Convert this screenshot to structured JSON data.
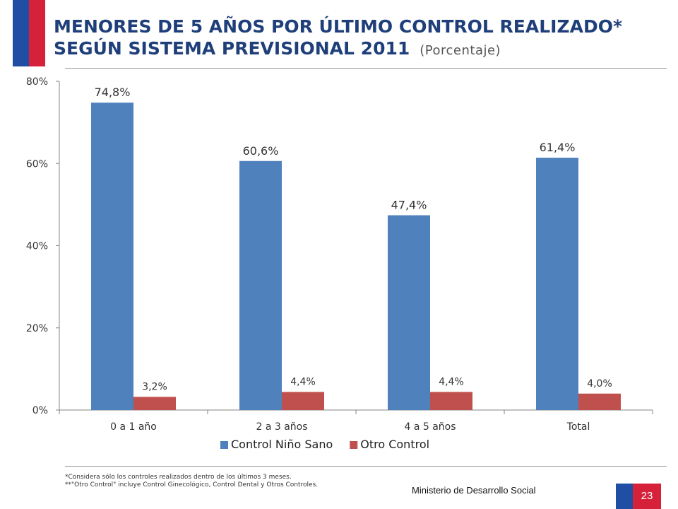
{
  "header": {
    "title_line1": "MENORES DE 5 AÑOS POR ÚLTIMO CONTROL REALIZADO*",
    "title_line2": "SEGÚN SISTEMA PREVISIONAL 2011",
    "subtitle": "(Porcentaje)"
  },
  "colors": {
    "brand_blue": "#1f4ea3",
    "brand_red": "#d6213a",
    "title_text": "#1f3f7a"
  },
  "chart_data": {
    "type": "bar",
    "categories": [
      "0 a 1 año",
      "2 a 3 años",
      "4 a 5 años",
      "Total"
    ],
    "series": [
      {
        "name": "Control Niño Sano",
        "values": [
          74.8,
          60.6,
          47.4,
          61.4
        ],
        "labels": [
          "74,8%",
          "60,6%",
          "47,4%",
          "61,4%"
        ],
        "color": "#4f81bd"
      },
      {
        "name": "Otro Control",
        "values": [
          3.2,
          4.4,
          4.4,
          4.0
        ],
        "labels": [
          "3,2%",
          "4,4%",
          "4,4%",
          "4,0%"
        ],
        "color": "#c0504d"
      }
    ],
    "ylim": [
      0,
      80
    ],
    "yticks": [
      0,
      20,
      40,
      60,
      80
    ],
    "ytick_labels": [
      "0%",
      "20%",
      "40%",
      "60%",
      "80%"
    ],
    "grid": false,
    "legend_position": "bottom"
  },
  "footer": {
    "note1": "*Considera sólo los controles realizados dentro de los últimos 3 meses.",
    "note2": "**\"Otro Control\" incluye Control Ginecológico, Control Dental y Otros Controles.",
    "ministry": "Ministerio de Desarrollo Social",
    "page_number": "23"
  }
}
